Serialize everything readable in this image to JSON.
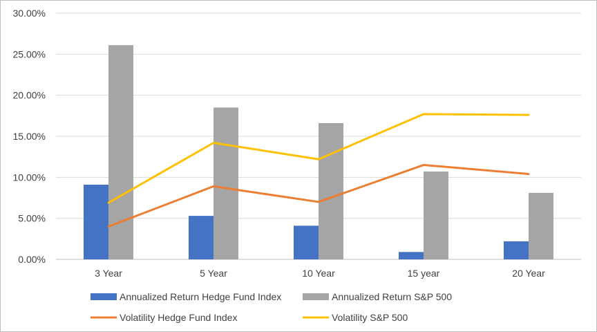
{
  "chart_data": {
    "type": "bar",
    "title": "",
    "xlabel": "",
    "ylabel": "",
    "categories": [
      "3 Year",
      "5 Year",
      "10 Year",
      "15 year",
      "20 Year"
    ],
    "ylim": [
      0,
      30
    ],
    "yticks": [
      "0.00%",
      "5.00%",
      "10.00%",
      "15.00%",
      "20.00%",
      "25.00%",
      "30.00%"
    ],
    "grid": true,
    "legend_position": "bottom",
    "series": [
      {
        "name": "Annualized Return Hedge Fund Index",
        "kind": "bar",
        "color": "#4472C4",
        "values": [
          9.1,
          5.3,
          4.1,
          0.9,
          2.2
        ]
      },
      {
        "name": "Annualized Return S&P 500",
        "kind": "bar",
        "color": "#A5A5A5",
        "values": [
          26.1,
          18.5,
          16.6,
          10.7,
          8.1
        ]
      },
      {
        "name": "Volatility Hedge Fund Index",
        "kind": "line",
        "color": "#ED7D31",
        "values": [
          4.0,
          8.9,
          7.0,
          11.5,
          10.4
        ]
      },
      {
        "name": "Volatility S&P 500",
        "kind": "line",
        "color": "#FFC000",
        "values": [
          6.9,
          14.2,
          12.2,
          17.7,
          17.6
        ]
      }
    ]
  }
}
